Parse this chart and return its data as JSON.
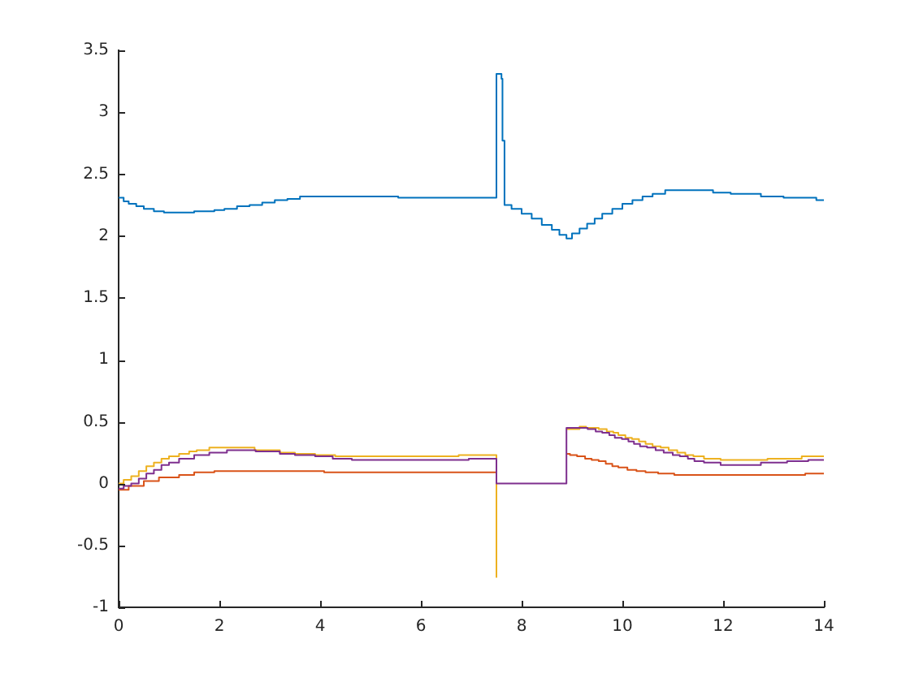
{
  "chart_data": {
    "type": "step",
    "xlim": [
      0,
      14
    ],
    "xticks": [
      0,
      2,
      4,
      6,
      8,
      10,
      12,
      14
    ],
    "ylim": [
      -1,
      3.5
    ],
    "yticks": [
      -1,
      -0.5,
      0,
      0.5,
      1,
      1.5,
      2,
      2.5,
      3,
      3.5
    ],
    "series": [
      {
        "color": "#0072bd",
        "x": [
          0,
          0.1,
          0.2,
          0.35,
          0.5,
          0.7,
          0.9,
          1.5,
          1.9,
          2.1,
          2.35,
          2.6,
          2.85,
          3.1,
          3.35,
          3.6,
          5.55,
          7.5,
          7.6,
          7.62,
          7.66,
          7.8,
          8.0,
          8.2,
          8.4,
          8.6,
          8.75,
          8.89,
          9.0,
          9.15,
          9.3,
          9.45,
          9.6,
          9.8,
          10.0,
          10.2,
          10.4,
          10.6,
          10.85,
          11.8,
          12.15,
          12.75,
          13.2,
          13.85,
          14
        ],
        "values": [
          2.31,
          2.28,
          2.26,
          2.24,
          2.22,
          2.2,
          2.19,
          2.2,
          2.21,
          2.22,
          2.24,
          2.25,
          2.27,
          2.29,
          2.3,
          2.32,
          2.31,
          3.31,
          3.27,
          2.77,
          2.25,
          2.22,
          2.18,
          2.14,
          2.09,
          2.05,
          2.01,
          1.98,
          2.02,
          2.06,
          2.1,
          2.14,
          2.18,
          2.22,
          2.26,
          2.29,
          2.32,
          2.34,
          2.37,
          2.35,
          2.34,
          2.32,
          2.31,
          2.29,
          2.29
        ]
      },
      {
        "color": "#d95319",
        "x": [
          0,
          0.2,
          0.5,
          0.8,
          1.2,
          1.5,
          1.9,
          4.08,
          7.5,
          7.55,
          8.89,
          8.96,
          9.1,
          9.26,
          9.39,
          9.53,
          9.67,
          9.8,
          9.92,
          10.1,
          10.28,
          10.46,
          10.71,
          11.03,
          13.63,
          14
        ],
        "values": [
          -0.05,
          -0.02,
          0.02,
          0.05,
          0.07,
          0.09,
          0.1,
          0.09,
          0.09,
          null,
          0.24,
          0.23,
          0.22,
          0.2,
          0.19,
          0.18,
          0.16,
          0.14,
          0.13,
          0.11,
          0.1,
          0.09,
          0.08,
          0.07,
          0.08,
          0.08
        ]
      },
      {
        "color": "#edb120",
        "x": [
          0,
          0.1,
          0.25,
          0.4,
          0.55,
          0.7,
          0.85,
          1.0,
          1.2,
          1.4,
          1.55,
          1.8,
          2.7,
          3.2,
          3.5,
          3.9,
          4.3,
          6.75,
          7.5,
          7.55,
          8.89,
          9.15,
          9.28,
          9.53,
          9.69,
          9.82,
          9.92,
          10.06,
          10.19,
          10.33,
          10.46,
          10.6,
          10.76,
          10.92,
          11.09,
          11.25,
          11.41,
          11.62,
          11.95,
          12.88,
          13.56,
          14
        ],
        "values": [
          0,
          0.03,
          0.06,
          0.1,
          0.14,
          0.17,
          0.2,
          0.22,
          0.24,
          0.26,
          0.27,
          0.29,
          0.27,
          0.25,
          0.24,
          0.23,
          0.22,
          0.23,
          -0.76,
          null,
          0.44,
          0.46,
          0.45,
          0.44,
          0.42,
          0.41,
          0.39,
          0.37,
          0.36,
          0.34,
          0.32,
          0.3,
          0.29,
          0.27,
          0.25,
          0.23,
          0.22,
          0.2,
          0.19,
          0.2,
          0.22,
          0.22
        ]
      },
      {
        "color": "#7e2f8e",
        "x": [
          0,
          0.1,
          0.25,
          0.4,
          0.55,
          0.7,
          0.85,
          1.0,
          1.2,
          1.5,
          1.8,
          2.15,
          2.72,
          3.2,
          3.5,
          3.9,
          4.25,
          4.63,
          6.95,
          7.5,
          8.89,
          9.31,
          9.47,
          9.6,
          9.74,
          9.85,
          9.99,
          10.12,
          10.23,
          10.35,
          10.49,
          10.66,
          10.82,
          11.0,
          11.14,
          11.3,
          11.43,
          11.62,
          11.95,
          12.75,
          13.27,
          13.69,
          14
        ],
        "values": [
          -0.04,
          -0.02,
          0,
          0.04,
          0.08,
          0.11,
          0.15,
          0.17,
          0.2,
          0.23,
          0.25,
          0.27,
          0.26,
          0.24,
          0.23,
          0.22,
          0.2,
          0.19,
          0.2,
          0,
          0.45,
          0.44,
          0.42,
          0.41,
          0.39,
          0.37,
          0.36,
          0.34,
          0.32,
          0.3,
          0.29,
          0.27,
          0.25,
          0.23,
          0.22,
          0.2,
          0.18,
          0.17,
          0.15,
          0.17,
          0.18,
          0.19,
          0.19
        ]
      }
    ]
  }
}
